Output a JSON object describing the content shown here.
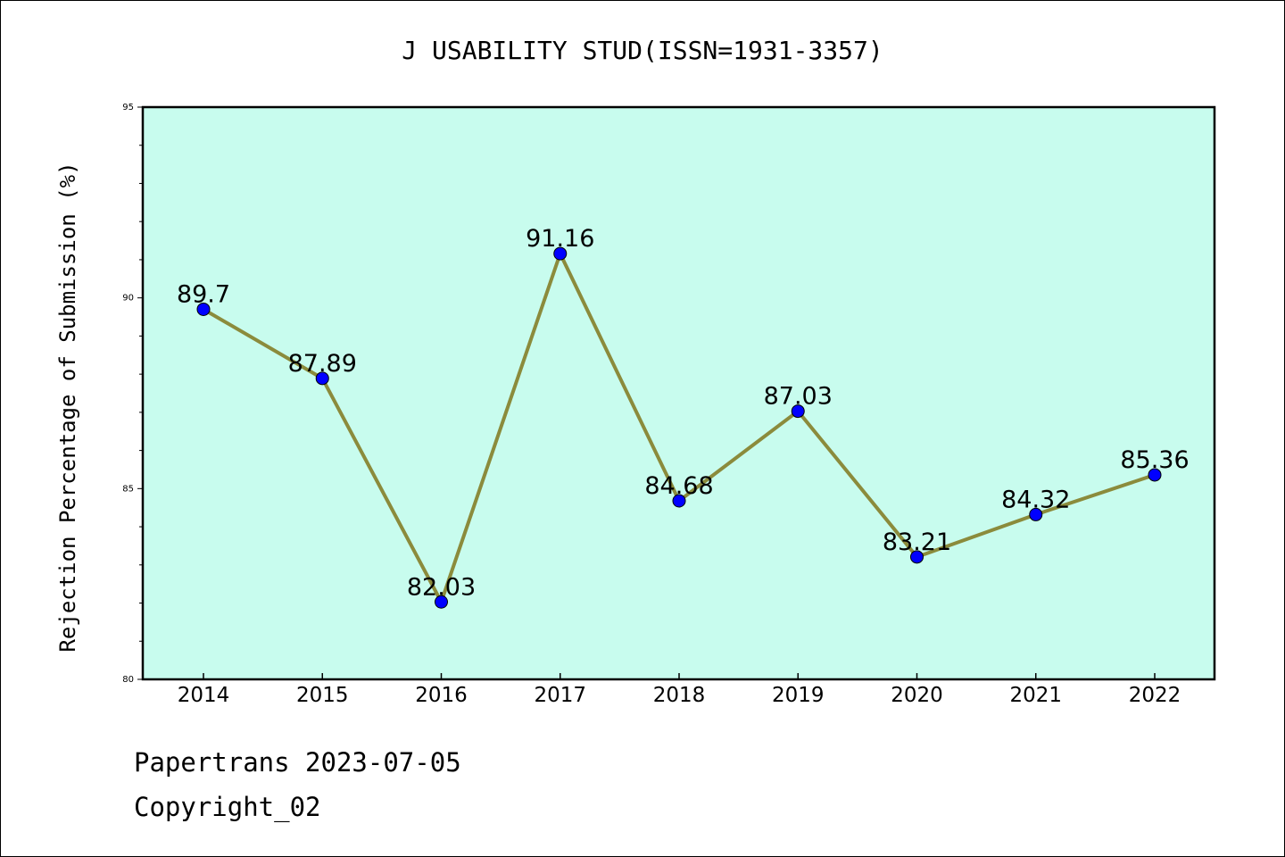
{
  "chart_data": {
    "type": "line",
    "title": "J USABILITY STUD(ISSN=1931-3357)",
    "xlabel": "",
    "ylabel": "Rejection Percentage of Submission (%)",
    "categories": [
      "2014",
      "2015",
      "2016",
      "2017",
      "2018",
      "2019",
      "2020",
      "2021",
      "2022"
    ],
    "series": [
      {
        "values": [
          89.7,
          87.89,
          82.03,
          91.16,
          84.68,
          87.03,
          83.21,
          84.32,
          85.36
        ],
        "labels": [
          "89.7",
          "87.89",
          "82.03",
          "91.16",
          "84.68",
          "87.03",
          "83.21",
          "84.32",
          "85.36"
        ]
      }
    ],
    "ylim": [
      80,
      95
    ],
    "yticks": [
      "80",
      "85",
      "90",
      "95"
    ],
    "grid": false,
    "colors": {
      "plot_background": "#c8fcee",
      "line": "#8b8b3c",
      "marker": "#0000ff"
    }
  },
  "footer": {
    "line1": "Papertrans 2023-07-05",
    "line2": "Copyright_02"
  }
}
